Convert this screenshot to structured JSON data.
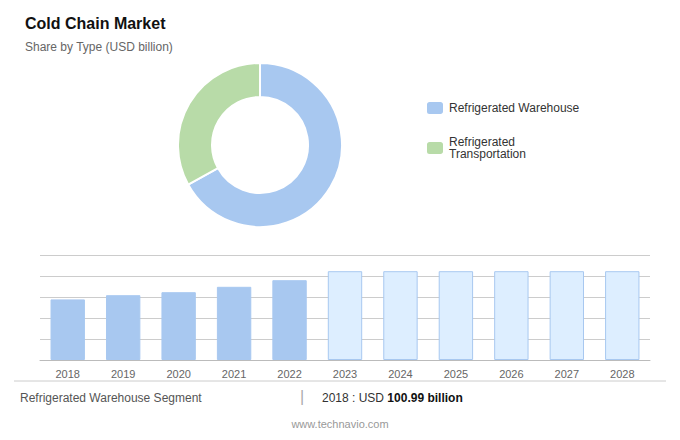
{
  "chart_data": [
    {
      "type": "pie",
      "title": "Cold Chain Market",
      "subtitle": "Share by Type (USD billion)",
      "categories": [
        "Refrigerated Warehouse",
        "Refrigerated\nTransportation"
      ],
      "values": [
        67,
        33
      ],
      "colors": [
        "#a8c8f0",
        "#b8dba8"
      ],
      "legend": "right"
    },
    {
      "type": "bar",
      "categories": [
        "2018",
        "2019",
        "2020",
        "2021",
        "2022",
        "2023",
        "2024",
        "2025",
        "2026",
        "2027",
        "2028"
      ],
      "values": [
        101,
        108,
        113,
        122,
        133,
        148,
        148,
        148,
        148,
        148,
        148
      ],
      "colors": [
        "#a8c8f0",
        "#a8c8f0",
        "#a8c8f0",
        "#a8c8f0",
        "#a8c8f0",
        "#ddeeff",
        "#ddeeff",
        "#ddeeff",
        "#ddeeff",
        "#ddeeff",
        "#ddeeff"
      ],
      "ylim": [
        0,
        175
      ],
      "yticks": [
        0,
        35,
        70,
        105,
        140,
        175
      ],
      "grid": true,
      "tick_labels": "x",
      "annotations": [
        "Refrigerated Warehouse Segment",
        "|",
        "2018 : USD ",
        "100.99 billion",
        "www.technavio.com"
      ]
    }
  ]
}
